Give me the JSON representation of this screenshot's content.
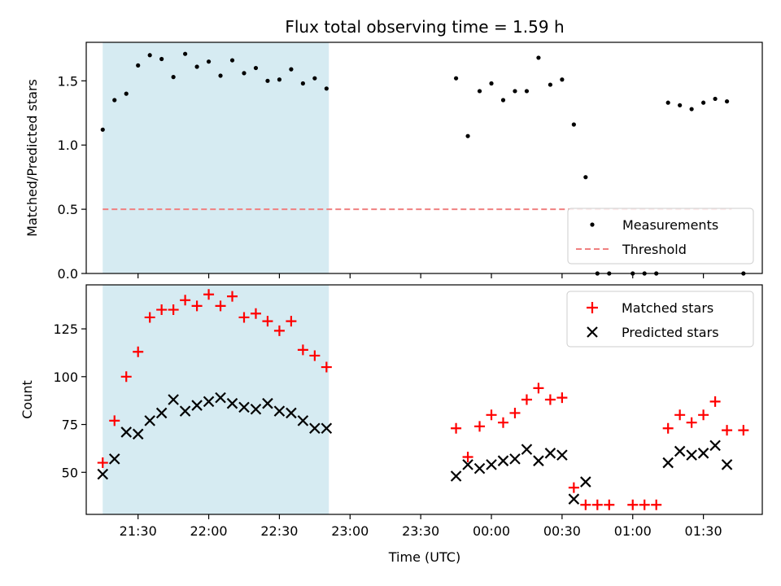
{
  "chart_data": [
    {
      "type": "scatter",
      "title": "Flux total observing time = 1.59 h",
      "xlabel": "",
      "ylabel": "Matched/Predicted stars",
      "ylim": [
        0,
        1.8
      ],
      "yticks": [
        0.0,
        0.5,
        1.0,
        1.5
      ],
      "ytick_labels": [
        "0.0",
        "0.5",
        "1.0",
        "1.5"
      ],
      "x_axis": "time (minutes after 21:00 UTC)",
      "shaded_interval": [
        "21:15",
        "22:51"
      ],
      "shaded_color": "#add8e6",
      "threshold": {
        "name": "Threshold",
        "value": 0.5,
        "x_start": "21:15",
        "x_end": "01:42",
        "color": "#f08080"
      },
      "legend": {
        "position": "lower right",
        "entries": [
          "Measurements",
          "Threshold"
        ]
      },
      "series": [
        {
          "name": "Measurements",
          "color": "#000000",
          "marker": "dot",
          "points": [
            [
              "21:15",
              1.12
            ],
            [
              "21:20",
              1.35
            ],
            [
              "21:25",
              1.4
            ],
            [
              "21:30",
              1.62
            ],
            [
              "21:35",
              1.7
            ],
            [
              "21:40",
              1.67
            ],
            [
              "21:45",
              1.53
            ],
            [
              "21:50",
              1.71
            ],
            [
              "21:55",
              1.61
            ],
            [
              "22:00",
              1.65
            ],
            [
              "22:05",
              1.54
            ],
            [
              "22:10",
              1.66
            ],
            [
              "22:15",
              1.56
            ],
            [
              "22:20",
              1.6
            ],
            [
              "22:25",
              1.5
            ],
            [
              "22:30",
              1.51
            ],
            [
              "22:35",
              1.59
            ],
            [
              "22:40",
              1.48
            ],
            [
              "22:45",
              1.52
            ],
            [
              "22:50",
              1.44
            ],
            [
              "23:45",
              1.52
            ],
            [
              "23:50",
              1.07
            ],
            [
              "23:55",
              1.42
            ],
            [
              "00:00",
              1.48
            ],
            [
              "00:05",
              1.35
            ],
            [
              "00:10",
              1.42
            ],
            [
              "00:15",
              1.42
            ],
            [
              "00:20",
              1.68
            ],
            [
              "00:25",
              1.47
            ],
            [
              "00:30",
              1.51
            ],
            [
              "00:35",
              1.16
            ],
            [
              "00:40",
              0.75
            ],
            [
              "00:45",
              0.0
            ],
            [
              "00:50",
              0.0
            ],
            [
              "01:00",
              0.0
            ],
            [
              "01:05",
              0.0
            ],
            [
              "01:10",
              0.0
            ],
            [
              "01:15",
              1.33
            ],
            [
              "01:20",
              1.31
            ],
            [
              "01:25",
              1.28
            ],
            [
              "01:30",
              1.33
            ],
            [
              "01:35",
              1.36
            ],
            [
              "01:40",
              1.34
            ],
            [
              "01:47",
              0.0
            ]
          ]
        }
      ]
    },
    {
      "type": "scatter",
      "title": "",
      "xlabel": "Time (UTC)",
      "ylabel": "Count",
      "ylim": [
        28,
        148
      ],
      "yticks": [
        50,
        75,
        100,
        125
      ],
      "ytick_labels": [
        "50",
        "75",
        "100",
        "125"
      ],
      "xticks": [
        "21:30",
        "22:00",
        "22:30",
        "23:00",
        "23:30",
        "00:00",
        "00:30",
        "01:00",
        "01:30"
      ],
      "xtick_labels": [
        "21:30",
        "22:00",
        "22:30",
        "23:00",
        "23:30",
        "00:00",
        "00:30",
        "01:00",
        "01:30"
      ],
      "xlim": [
        "21:08",
        "01:55"
      ],
      "shaded_interval": [
        "21:15",
        "22:51"
      ],
      "shaded_color": "#add8e6",
      "legend": {
        "position": "upper right",
        "entries": [
          "Matched stars",
          "Predicted stars"
        ]
      },
      "series": [
        {
          "name": "Matched stars",
          "color": "#ff0000",
          "marker": "plus",
          "points": [
            [
              "21:15",
              55
            ],
            [
              "21:20",
              77
            ],
            [
              "21:25",
              100
            ],
            [
              "21:30",
              113
            ],
            [
              "21:35",
              131
            ],
            [
              "21:40",
              135
            ],
            [
              "21:45",
              135
            ],
            [
              "21:50",
              140
            ],
            [
              "21:55",
              137
            ],
            [
              "22:00",
              143
            ],
            [
              "22:05",
              137
            ],
            [
              "22:10",
              142
            ],
            [
              "22:15",
              131
            ],
            [
              "22:20",
              133
            ],
            [
              "22:25",
              129
            ],
            [
              "22:30",
              124
            ],
            [
              "22:35",
              129
            ],
            [
              "22:40",
              114
            ],
            [
              "22:45",
              111
            ],
            [
              "22:50",
              105
            ],
            [
              "23:45",
              73
            ],
            [
              "23:50",
              58
            ],
            [
              "23:55",
              74
            ],
            [
              "00:00",
              80
            ],
            [
              "00:05",
              76
            ],
            [
              "00:10",
              81
            ],
            [
              "00:15",
              88
            ],
            [
              "00:20",
              94
            ],
            [
              "00:25",
              88
            ],
            [
              "00:30",
              89
            ],
            [
              "00:35",
              42
            ],
            [
              "00:40",
              33
            ],
            [
              "00:45",
              33
            ],
            [
              "00:50",
              33
            ],
            [
              "01:00",
              33
            ],
            [
              "01:05",
              33
            ],
            [
              "01:10",
              33
            ],
            [
              "01:15",
              73
            ],
            [
              "01:20",
              80
            ],
            [
              "01:25",
              76
            ],
            [
              "01:30",
              80
            ],
            [
              "01:35",
              87
            ],
            [
              "01:40",
              72
            ],
            [
              "01:47",
              72
            ]
          ]
        },
        {
          "name": "Predicted stars",
          "color": "#000000",
          "marker": "x",
          "points": [
            [
              "21:15",
              49
            ],
            [
              "21:20",
              57
            ],
            [
              "21:25",
              71
            ],
            [
              "21:30",
              70
            ],
            [
              "21:35",
              77
            ],
            [
              "21:40",
              81
            ],
            [
              "21:45",
              88
            ],
            [
              "21:50",
              82
            ],
            [
              "21:55",
              85
            ],
            [
              "22:00",
              87
            ],
            [
              "22:05",
              89
            ],
            [
              "22:10",
              86
            ],
            [
              "22:15",
              84
            ],
            [
              "22:20",
              83
            ],
            [
              "22:25",
              86
            ],
            [
              "22:30",
              82
            ],
            [
              "22:35",
              81
            ],
            [
              "22:40",
              77
            ],
            [
              "22:45",
              73
            ],
            [
              "22:50",
              73
            ],
            [
              "23:45",
              48
            ],
            [
              "23:50",
              54
            ],
            [
              "23:55",
              52
            ],
            [
              "00:00",
              54
            ],
            [
              "00:05",
              56
            ],
            [
              "00:10",
              57
            ],
            [
              "00:15",
              62
            ],
            [
              "00:20",
              56
            ],
            [
              "00:25",
              60
            ],
            [
              "00:30",
              59
            ],
            [
              "00:35",
              36
            ],
            [
              "00:40",
              45
            ],
            [
              "01:15",
              55
            ],
            [
              "01:20",
              61
            ],
            [
              "01:25",
              59
            ],
            [
              "01:30",
              60
            ],
            [
              "01:35",
              64
            ],
            [
              "01:40",
              54
            ]
          ]
        }
      ]
    }
  ]
}
